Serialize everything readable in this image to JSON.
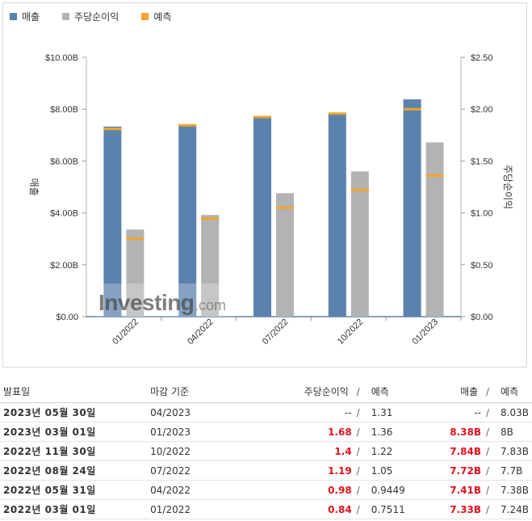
{
  "legend": {
    "revenue": "매출",
    "eps": "주당순이익",
    "forecast": "예측"
  },
  "colors": {
    "revenue": "#5b82ad",
    "eps": "#b3b3b3",
    "forecast": "#f0a52c",
    "red": "#e0131e"
  },
  "watermark": {
    "text": "Investing",
    "suffix": ".com"
  },
  "chart_data": {
    "type": "bar",
    "categories": [
      "01/2022",
      "04/2022",
      "07/2022",
      "10/2022",
      "01/2023"
    ],
    "series": [
      {
        "name": "매출",
        "axis": "left",
        "values": [
          7.33,
          7.41,
          7.72,
          7.84,
          8.38
        ],
        "forecast": [
          7.24,
          7.38,
          7.7,
          7.83,
          8.0
        ]
      },
      {
        "name": "주당순이익",
        "axis": "right",
        "values": [
          0.84,
          0.98,
          1.19,
          1.4,
          1.68
        ],
        "forecast": [
          0.7511,
          0.9449,
          1.05,
          1.22,
          1.36
        ]
      }
    ],
    "ylabel_left": "매출",
    "ylabel_right": "주당순이익",
    "ylim_left": [
      0,
      10
    ],
    "ylim_right": [
      0,
      2.5
    ],
    "yticks_left": [
      "$0.00",
      "$2.00B",
      "$4.00B",
      "$6.00B",
      "$8.00B",
      "$10.00B"
    ],
    "yticks_right": [
      "$0.00",
      "$0.50",
      "$1.00",
      "$1.50",
      "$2.00",
      "$2.50"
    ]
  },
  "table": {
    "headers": {
      "date": "발표일",
      "period": "마감 기준",
      "eps": "주당순이익",
      "eps_forecast": "예측",
      "revenue": "매출",
      "revenue_forecast": "예측",
      "slash": "/"
    },
    "rows": [
      {
        "date": "2023년 05월 30일",
        "period": "04/2023",
        "eps": "--",
        "eps_forecast": "1.31",
        "revenue": "--",
        "revenue_forecast": "8.03B"
      },
      {
        "date": "2023년 03월 01일",
        "period": "01/2023",
        "eps": "1.68",
        "eps_forecast": "1.36",
        "revenue": "8.38B",
        "revenue_forecast": "8B"
      },
      {
        "date": "2022년 11월 30일",
        "period": "10/2022",
        "eps": "1.4",
        "eps_forecast": "1.22",
        "revenue": "7.84B",
        "revenue_forecast": "7.83B"
      },
      {
        "date": "2022년 08월 24일",
        "period": "07/2022",
        "eps": "1.19",
        "eps_forecast": "1.05",
        "revenue": "7.72B",
        "revenue_forecast": "7.7B"
      },
      {
        "date": "2022년 05월 31일",
        "period": "04/2022",
        "eps": "0.98",
        "eps_forecast": "0.9449",
        "revenue": "7.41B",
        "revenue_forecast": "7.38B"
      },
      {
        "date": "2022년 03월 01일",
        "period": "01/2022",
        "eps": "0.84",
        "eps_forecast": "0.7511",
        "revenue": "7.33B",
        "revenue_forecast": "7.24B"
      }
    ]
  }
}
